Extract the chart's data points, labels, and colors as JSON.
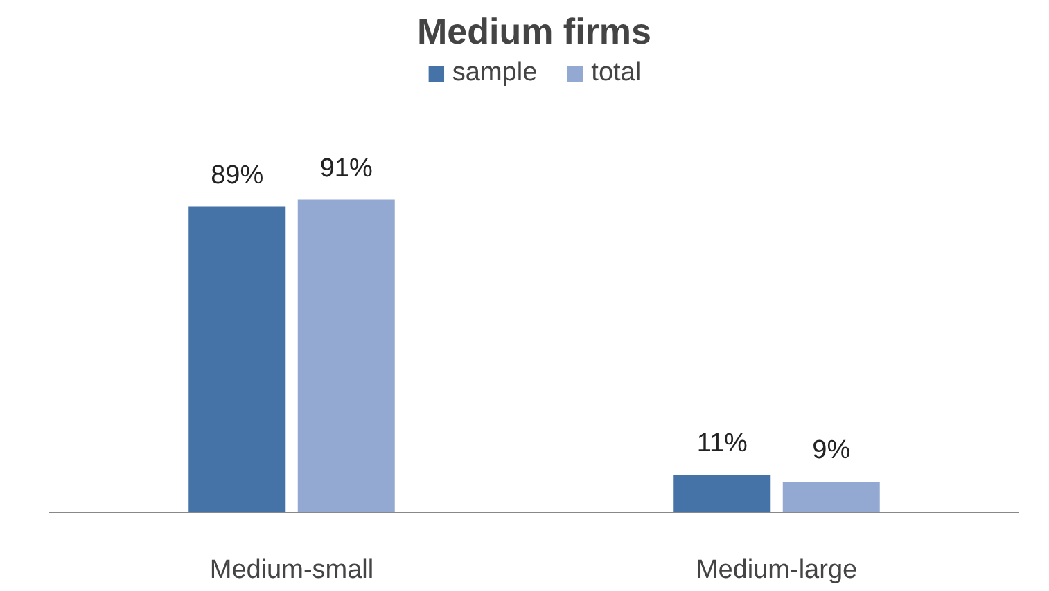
{
  "chart_data": {
    "type": "bar",
    "title": "Medium firms",
    "categories": [
      "Medium-small",
      "Medium-large"
    ],
    "series": [
      {
        "name": "sample",
        "color": "#4572a7",
        "values": [
          89,
          11
        ],
        "value_labels": [
          "89%",
          "11%"
        ]
      },
      {
        "name": "total",
        "color": "#93a9d1",
        "values": [
          91,
          9
        ],
        "value_labels": [
          "91%",
          "9%"
        ]
      }
    ],
    "legend": "top"
  }
}
